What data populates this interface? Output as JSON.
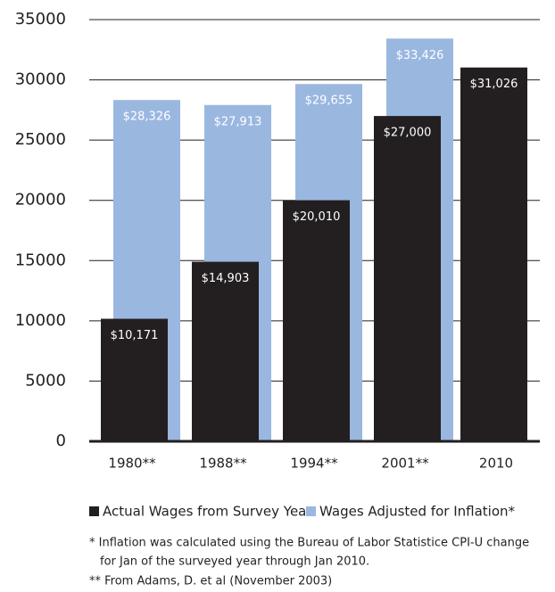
{
  "chart_data": {
    "type": "bar",
    "categories": [
      "1980**",
      "1988**",
      "1994**",
      "2001**",
      "2010"
    ],
    "series": [
      {
        "name": "Actual Wages from Survey Year",
        "color": "#231f20",
        "values": [
          10171,
          14903,
          20010,
          27000,
          31026
        ],
        "value_labels": [
          "$10,171",
          "$14,903",
          "$20,010",
          "$27,000",
          "$31,026"
        ]
      },
      {
        "name": "Wages Adjusted for Inflation*",
        "color": "#9ab7e0",
        "values": [
          28326,
          27913,
          29655,
          33426,
          null
        ],
        "value_labels": [
          "$28,326",
          "$27,913",
          "$29,655",
          "$33,426",
          null
        ]
      }
    ],
    "ylim": [
      0,
      35000
    ],
    "yticks": [
      0,
      5000,
      10000,
      15000,
      20000,
      25000,
      30000,
      35000
    ],
    "grid": true,
    "notes": [
      "* Inflation was calculated using the Bureau of Labor Statistice CPI-U change",
      "for Jan of the surveyed year through Jan 2010.",
      "** From Adams, D. et al (November 2003)"
    ]
  }
}
